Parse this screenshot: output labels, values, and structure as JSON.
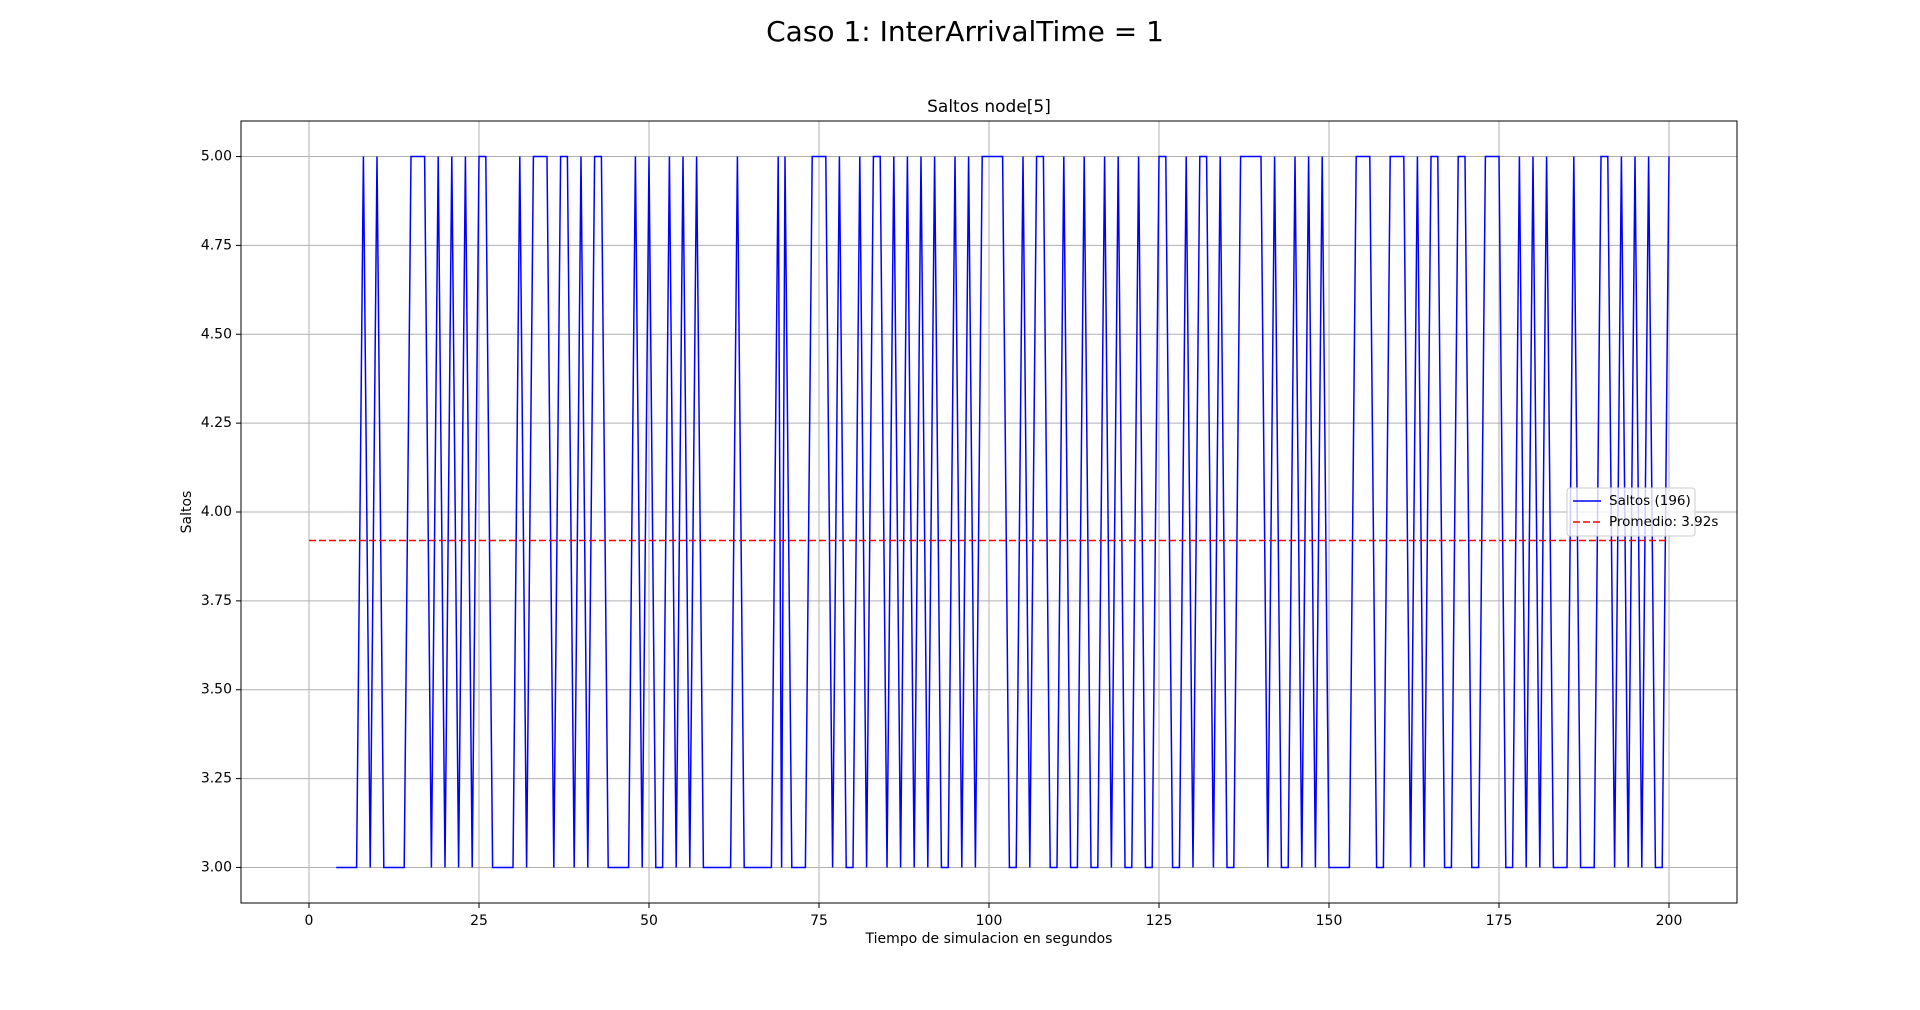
{
  "chart_data": {
    "type": "line",
    "title": "Caso 1: InterArrivalTime = 1",
    "subtitle": "Saltos node[5]",
    "x_label": "Tiempo de simulacion en segundos",
    "y_label": "Saltos",
    "xlim": [
      -10,
      210
    ],
    "ylim": [
      2.9,
      5.1
    ],
    "xticks": [
      0,
      25,
      50,
      75,
      100,
      125,
      150,
      175,
      200
    ],
    "yticks": [
      {
        "value": 3,
        "label": "3.00"
      },
      {
        "value": 3.25,
        "label": "3.25"
      },
      {
        "value": 3.5,
        "label": "3.50"
      },
      {
        "value": 3.75,
        "label": "3.75"
      },
      {
        "value": 4,
        "label": "4.00"
      },
      {
        "value": 4.25,
        "label": "4.25"
      },
      {
        "value": 4.5,
        "label": "4.50"
      },
      {
        "value": 4.75,
        "label": "4.75"
      },
      {
        "value": 5,
        "label": "5.00"
      }
    ],
    "grid": true,
    "legend_loc": "center right",
    "series": [
      {
        "name": "Saltos (196)",
        "color": "#0000ff",
        "style": "solid",
        "x": [
          4,
          5,
          6,
          7,
          8,
          9,
          10,
          11,
          12,
          13,
          14,
          15,
          16,
          17,
          18,
          19,
          20,
          21,
          22,
          23,
          24,
          25,
          26,
          27,
          28,
          29,
          30,
          31,
          32,
          33,
          34,
          35,
          36,
          37,
          38,
          39,
          40,
          41,
          42,
          43,
          44,
          45,
          46,
          47,
          48,
          49,
          50,
          51,
          52,
          53,
          54,
          55,
          56,
          57,
          58,
          59,
          60,
          61,
          62,
          63,
          64,
          65,
          66,
          67,
          68,
          69,
          69.5,
          70,
          71,
          72,
          73,
          74,
          75,
          76,
          77,
          78,
          79,
          80,
          81,
          82,
          83,
          84,
          85,
          86,
          87,
          88,
          89,
          90,
          91,
          92,
          93,
          94,
          95,
          96,
          97,
          98,
          99,
          100,
          101,
          102,
          103,
          104,
          105,
          106,
          107,
          108,
          109,
          110,
          111,
          112,
          113,
          114,
          115,
          116,
          117,
          118,
          119,
          120,
          121,
          122,
          123,
          124,
          125,
          126,
          127,
          128,
          129,
          130,
          131,
          132,
          133,
          134,
          135,
          136,
          137,
          138,
          139,
          140,
          141,
          142,
          143,
          144,
          145,
          146,
          147,
          148,
          149,
          150,
          151,
          152,
          153,
          154,
          155,
          156,
          157,
          158,
          159,
          160,
          161,
          162,
          163,
          164,
          165,
          166,
          167,
          168,
          169,
          170,
          171,
          172,
          173,
          174,
          175,
          176,
          177,
          178,
          179,
          180,
          181,
          182,
          183,
          184,
          185,
          186,
          187,
          188,
          189,
          190,
          191,
          192,
          193,
          194,
          195,
          196,
          197,
          198,
          199,
          200
        ],
        "values": [
          3,
          3,
          3,
          3,
          5,
          3,
          5,
          3,
          3,
          3,
          3,
          5,
          5,
          5,
          3,
          5,
          3,
          5,
          3,
          5,
          3,
          5,
          5,
          3,
          3,
          3,
          3,
          5,
          3,
          5,
          5,
          5,
          3,
          5,
          5,
          3,
          5,
          3,
          5,
          5,
          3,
          3,
          3,
          3,
          5,
          3,
          5,
          3,
          3,
          5,
          3,
          5,
          3,
          5,
          3,
          3,
          3,
          3,
          3,
          5,
          3,
          3,
          3,
          3,
          3,
          5,
          3,
          5,
          3,
          3,
          3,
          5,
          5,
          5,
          3,
          5,
          3,
          3,
          5,
          3,
          5,
          5,
          3,
          5,
          3,
          5,
          3,
          5,
          3,
          5,
          3,
          3,
          5,
          3,
          5,
          3,
          5,
          5,
          5,
          5,
          3,
          3,
          5,
          3,
          5,
          5,
          3,
          3,
          5,
          3,
          3,
          5,
          3,
          3,
          5,
          3,
          5,
          3,
          3,
          5,
          3,
          3,
          5,
          5,
          3,
          3,
          5,
          3,
          5,
          5,
          3,
          5,
          3,
          3,
          5,
          5,
          5,
          5,
          3,
          5,
          3,
          3,
          5,
          3,
          5,
          3,
          5,
          3,
          3,
          3,
          3,
          5,
          5,
          5,
          3,
          3,
          5,
          5,
          5,
          3,
          5,
          3,
          5,
          5,
          3,
          3,
          5,
          5,
          3,
          3,
          5,
          5,
          5,
          3,
          3,
          5,
          3,
          5,
          3,
          5,
          3,
          3,
          3,
          5,
          3,
          3,
          3,
          5,
          5,
          3,
          5,
          3,
          5,
          3,
          5,
          3,
          3,
          5
        ]
      },
      {
        "name": "Promedio: 3.92s",
        "color": "#ff0000",
        "style": "dashed",
        "x": [
          0,
          200
        ],
        "values": [
          3.92,
          3.92
        ]
      }
    ]
  }
}
